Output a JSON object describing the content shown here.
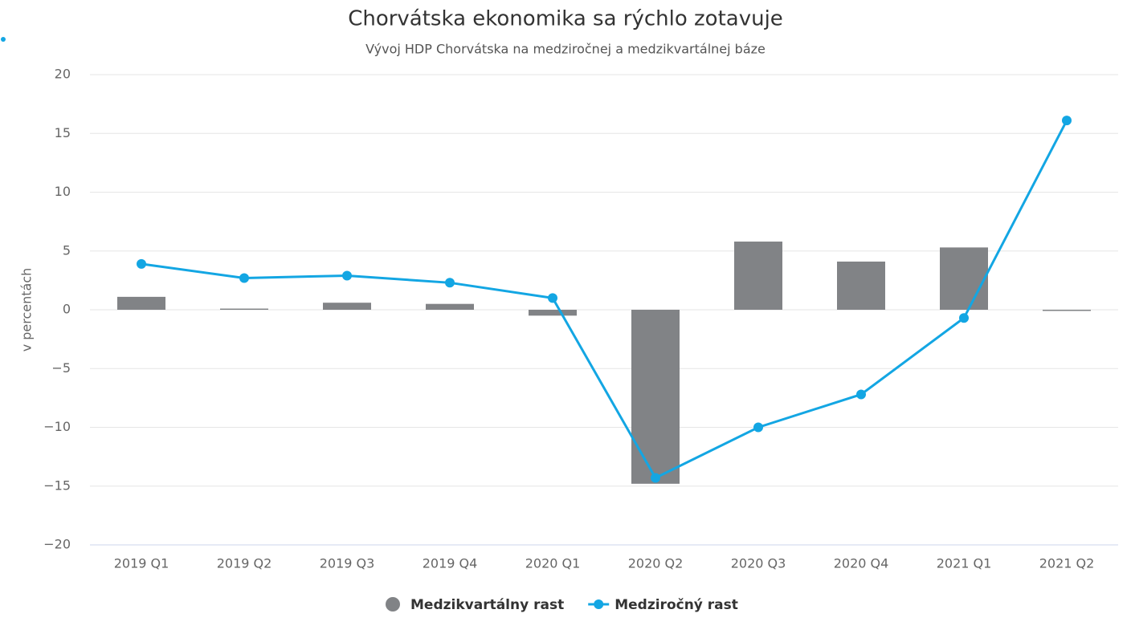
{
  "chart_data": {
    "type": "combo",
    "title": "Chorvátska ekonomika sa rýchlo zotavuje",
    "subtitle": "Vývoj HDP Chorvátska na medziročnej a medzikvartálnej báze",
    "y_label": "v percentách",
    "categories": [
      "2019 Q1",
      "2019 Q2",
      "2019 Q3",
      "2019 Q4",
      "2020 Q1",
      "2020 Q2",
      "2020 Q3",
      "2020 Q4",
      "2021 Q1",
      "2021 Q2"
    ],
    "series": [
      {
        "name": "Medzikvartálny rast",
        "type": "bar",
        "color": "#818386",
        "values": [
          1.1,
          0.1,
          0.6,
          0.5,
          -0.5,
          -14.8,
          5.8,
          4.1,
          5.3,
          -0.1
        ]
      },
      {
        "name": "Medziročný rast",
        "type": "line",
        "color": "#13a6e3",
        "values": [
          3.9,
          2.7,
          2.9,
          2.3,
          1.0,
          -14.3,
          -10.0,
          -7.2,
          -0.7,
          16.1
        ]
      }
    ],
    "ylim": [
      -20,
      20
    ],
    "yticks": [
      {
        "value": -20,
        "label": "−20"
      },
      {
        "value": -15,
        "label": "−15"
      },
      {
        "value": -10,
        "label": "−10"
      },
      {
        "value": -5,
        "label": "−5"
      },
      0,
      5,
      10,
      15,
      20
    ],
    "grid": true
  }
}
